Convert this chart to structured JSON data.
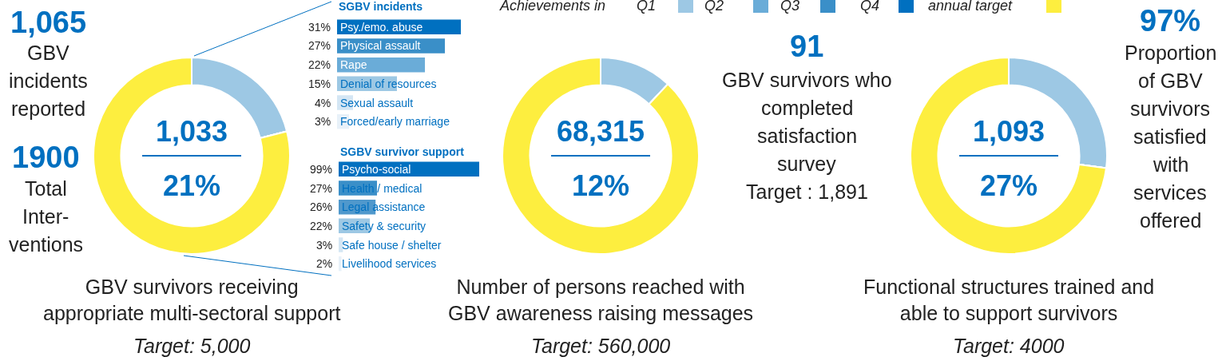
{
  "chart_data": [
    {
      "type": "other",
      "annotations": [
        "1,065",
        "GBV\nincidents\nreported"
      ]
    },
    {
      "type": "other",
      "annotations": [
        "1900",
        "Total\nInter-\nventions"
      ]
    },
    {
      "type": "donut",
      "title": "GBV survivors receiving\nappropriate multi-sectoral support",
      "subtitle": "Target: 5,000",
      "categories": [
        "Q1",
        "Q2",
        "Q3",
        "Q4",
        "annual target"
      ],
      "values": [
        21,
        0,
        0,
        0,
        79
      ],
      "colors": [
        "#9dc8e4",
        "#6aacd8",
        "#3a8fc8",
        "#0070c0",
        "#fdee3f"
      ],
      "annotations": [
        "1,033",
        "21%"
      ],
      "legend": "top",
      "legend_title": "Achievements in"
    },
    {
      "type": "bar",
      "orientation": "horizontal",
      "title": "SGBV incidents",
      "categories": [
        "Psy./emo. abuse",
        "Physical assault",
        "Rape",
        "Denial of resources",
        "Sexual assault",
        "Forced/early marriage"
      ],
      "values": [
        31,
        27,
        22,
        15,
        4,
        3
      ],
      "colors": [
        "#0070c0",
        "#3a8fc8",
        "#6aacd8",
        "#9dc8e4",
        "#d4e6f4",
        "#e8f1f9"
      ],
      "value_labels": [
        "31%",
        "27%",
        "22%",
        "15%",
        "4%",
        "3%"
      ]
    },
    {
      "type": "bar",
      "orientation": "horizontal",
      "title": "SGBV survivor support",
      "categories": [
        "Psycho-social",
        "Health / medical",
        "Legal assistance",
        "Safety & security",
        "Safe house / shelter",
        "Livelihood services"
      ],
      "values": [
        99,
        27,
        26,
        22,
        3,
        2
      ],
      "colors": [
        "#0070c0",
        "#3a8fc8",
        "#4f98cc",
        "#9dc8e4",
        "#d4e6f4",
        "#e8f1f9"
      ],
      "value_labels": [
        "99%",
        "27%",
        "26%",
        "22%",
        "3%",
        "2%"
      ]
    },
    {
      "type": "donut",
      "title": "Number of persons reached with\nGBV awareness raising messages",
      "subtitle": "Target: 560,000",
      "values": [
        12,
        0,
        0,
        0,
        88
      ],
      "colors": [
        "#9dc8e4",
        "#6aacd8",
        "#3a8fc8",
        "#0070c0",
        "#fdee3f"
      ],
      "annotations": [
        "68,315",
        "12%"
      ]
    },
    {
      "type": "other",
      "annotations": [
        "91",
        "GBV survivors who\ncompleted\nsatisfaction\nsurvey",
        "Target : 1,891"
      ]
    },
    {
      "type": "donut",
      "title": "Functional structures trained and\nable to support survivors",
      "subtitle": "Target: 4000",
      "values": [
        27,
        0,
        0,
        0,
        73
      ],
      "colors": [
        "#9dc8e4",
        "#6aacd8",
        "#3a8fc8",
        "#0070c0",
        "#fdee3f"
      ],
      "annotations": [
        "1,093",
        "27%"
      ]
    },
    {
      "type": "other",
      "annotations": [
        "97%",
        "Proportion\nof GBV\nsurvivors\nsatisfied\nwith\nservices\noffered"
      ]
    }
  ]
}
